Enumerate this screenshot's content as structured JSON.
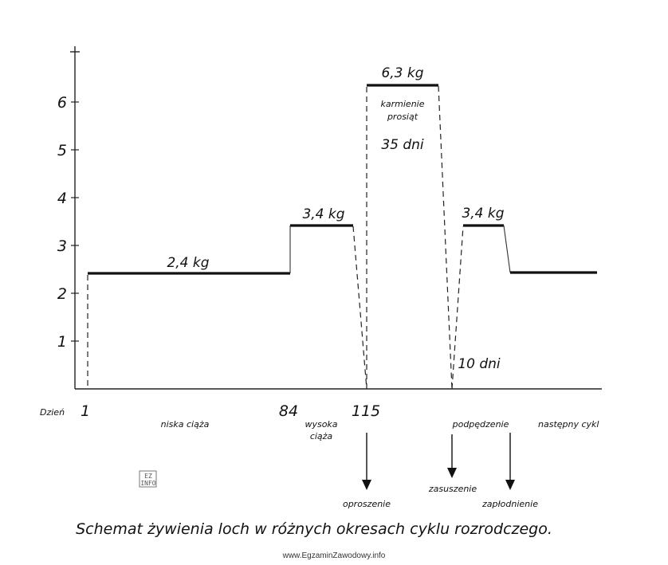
{
  "chart_data": {
    "type": "line",
    "title": "Schemat żywienia loch w różnych okresach cyklu rozrodczego.",
    "xlabel": "Dzień",
    "ylabel": "",
    "ylim": [
      0,
      7
    ],
    "yticks": [
      "1",
      "2",
      "3",
      "4",
      "5",
      "6"
    ],
    "xticks": [
      {
        "label": "1",
        "day": 1
      },
      {
        "label": "84",
        "day": 84
      },
      {
        "label": "115",
        "day": 115
      }
    ],
    "segments": [
      {
        "label": "2,4 kg",
        "value": 2.4,
        "start_day": 1,
        "end_day": 84
      },
      {
        "label": "3,4 kg",
        "value": 3.4,
        "start_day": 84,
        "end_day": 115
      },
      {
        "label": "6,3 kg",
        "value": 6.3,
        "start_day": 115,
        "end_day": 150
      },
      {
        "label": "3,4 kg",
        "value": 3.4,
        "start_day": 150,
        "end_day": 160
      },
      {
        "label": "",
        "value": 2.4,
        "start_day": 160,
        "end_day": null
      }
    ],
    "annotations": {
      "lactation_line1": "karmienie",
      "lactation_line2": "prosiąt",
      "lactation_days": "35 dni",
      "flushing_days": "10 dni"
    },
    "periods": [
      {
        "label": "niska ciąża"
      },
      {
        "label_line1": "wysoka",
        "label_line2": "ciąża"
      },
      {
        "label": "podpędzenie"
      },
      {
        "label": "następny cykl"
      }
    ],
    "events": [
      {
        "label": "oproszenie"
      },
      {
        "label": "zasuszenie"
      },
      {
        "label": "zapłodnienie"
      }
    ]
  },
  "logo_text": "EZ INFO",
  "watermark": "www.EgzaminZawodowy.info"
}
